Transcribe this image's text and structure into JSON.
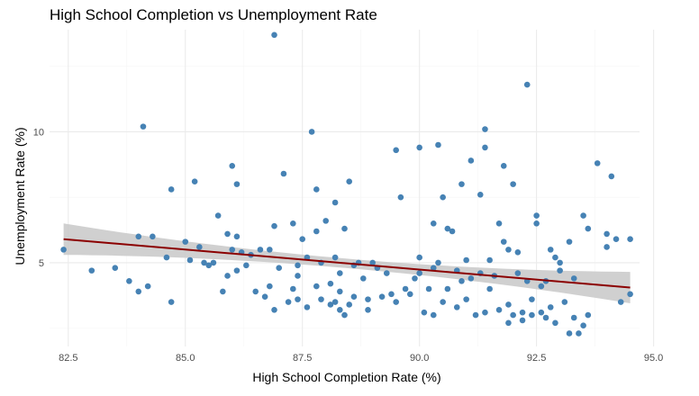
{
  "chart_data": {
    "type": "scatter",
    "title": "High School Completion vs Unemployment Rate",
    "xlabel": "High School Completion Rate (%)",
    "ylabel": "Unemployment Rate (%)",
    "xlim": [
      82.1,
      94.7
    ],
    "ylim": [
      1.8,
      13.9
    ],
    "x_ticks": [
      82.5,
      85.0,
      87.5,
      90.0,
      92.5,
      95.0
    ],
    "x_tick_labels": [
      "82.5",
      "85.0",
      "87.5",
      "90.0",
      "92.5",
      "95.0"
    ],
    "y_ticks": [
      5,
      10
    ],
    "y_tick_labels": [
      "5",
      "10"
    ],
    "grid": true,
    "legend": "none",
    "colors": {
      "points": "#4682b4",
      "trend_line": "#8b0000",
      "confidence_band": "#c8c8c8",
      "grid_major": "#ebebeb",
      "grid_minor": "#f5f5f5"
    },
    "trend": {
      "method": "linear",
      "start": [
        82.4,
        5.9
      ],
      "end": [
        94.5,
        4.05
      ],
      "band_halfwidth_start": 0.6,
      "band_halfwidth_mid": 0.18,
      "band_halfwidth_end": 0.6
    },
    "points": [
      [
        82.4,
        5.5
      ],
      [
        83.0,
        4.7
      ],
      [
        83.5,
        4.8
      ],
      [
        83.8,
        4.3
      ],
      [
        84.0,
        3.9
      ],
      [
        84.0,
        6.0
      ],
      [
        84.1,
        10.2
      ],
      [
        84.2,
        4.1
      ],
      [
        84.3,
        6.0
      ],
      [
        84.6,
        5.2
      ],
      [
        84.7,
        7.8
      ],
      [
        84.7,
        3.5
      ],
      [
        85.0,
        5.8
      ],
      [
        85.1,
        5.1
      ],
      [
        85.2,
        8.1
      ],
      [
        85.3,
        5.6
      ],
      [
        85.4,
        5.0
      ],
      [
        85.5,
        4.9
      ],
      [
        85.6,
        5.0
      ],
      [
        85.7,
        6.8
      ],
      [
        85.8,
        3.9
      ],
      [
        85.9,
        6.1
      ],
      [
        85.9,
        4.5
      ],
      [
        86.0,
        5.5
      ],
      [
        86.0,
        8.7
      ],
      [
        86.1,
        4.7
      ],
      [
        86.1,
        6.0
      ],
      [
        86.1,
        8.0
      ],
      [
        86.2,
        5.4
      ],
      [
        86.3,
        4.9
      ],
      [
        86.4,
        5.3
      ],
      [
        86.5,
        3.9
      ],
      [
        86.6,
        5.5
      ],
      [
        86.7,
        3.7
      ],
      [
        86.8,
        4.1
      ],
      [
        86.8,
        5.5
      ],
      [
        86.9,
        6.4
      ],
      [
        86.9,
        3.2
      ],
      [
        86.9,
        13.7
      ],
      [
        87.0,
        4.8
      ],
      [
        87.1,
        8.4
      ],
      [
        87.2,
        3.5
      ],
      [
        87.3,
        6.5
      ],
      [
        87.3,
        4.0
      ],
      [
        87.4,
        3.6
      ],
      [
        87.4,
        4.5
      ],
      [
        87.4,
        4.9
      ],
      [
        87.5,
        5.9
      ],
      [
        87.6,
        5.2
      ],
      [
        87.6,
        3.3
      ],
      [
        87.7,
        10.0
      ],
      [
        87.8,
        4.1
      ],
      [
        87.8,
        6.2
      ],
      [
        87.8,
        7.8
      ],
      [
        87.9,
        3.6
      ],
      [
        87.9,
        5.0
      ],
      [
        88.0,
        6.6
      ],
      [
        88.1,
        3.4
      ],
      [
        88.1,
        4.2
      ],
      [
        88.2,
        3.5
      ],
      [
        88.2,
        5.2
      ],
      [
        88.2,
        7.3
      ],
      [
        88.3,
        3.9
      ],
      [
        88.3,
        3.2
      ],
      [
        88.3,
        4.6
      ],
      [
        88.4,
        3.0
      ],
      [
        88.4,
        6.3
      ],
      [
        88.5,
        8.1
      ],
      [
        88.5,
        3.4
      ],
      [
        88.6,
        3.7
      ],
      [
        88.6,
        4.9
      ],
      [
        88.7,
        5.0
      ],
      [
        88.8,
        4.4
      ],
      [
        88.9,
        3.6
      ],
      [
        88.9,
        3.2
      ],
      [
        89.0,
        5.0
      ],
      [
        89.1,
        4.8
      ],
      [
        89.2,
        3.7
      ],
      [
        89.3,
        4.6
      ],
      [
        89.4,
        3.8
      ],
      [
        89.5,
        9.3
      ],
      [
        89.5,
        3.5
      ],
      [
        89.6,
        7.5
      ],
      [
        89.7,
        4.0
      ],
      [
        89.8,
        3.8
      ],
      [
        89.9,
        4.4
      ],
      [
        90.0,
        9.4
      ],
      [
        90.0,
        5.2
      ],
      [
        90.0,
        4.6
      ],
      [
        90.1,
        3.1
      ],
      [
        90.2,
        4.0
      ],
      [
        90.3,
        6.5
      ],
      [
        90.3,
        4.8
      ],
      [
        90.3,
        3.0
      ],
      [
        90.4,
        9.5
      ],
      [
        90.4,
        5.0
      ],
      [
        90.5,
        7.5
      ],
      [
        90.5,
        3.5
      ],
      [
        90.6,
        4.0
      ],
      [
        90.6,
        6.3
      ],
      [
        90.7,
        6.2
      ],
      [
        90.8,
        3.3
      ],
      [
        90.8,
        4.7
      ],
      [
        90.9,
        8.0
      ],
      [
        90.9,
        4.3
      ],
      [
        91.0,
        3.6
      ],
      [
        91.0,
        5.1
      ],
      [
        91.1,
        8.9
      ],
      [
        91.1,
        4.4
      ],
      [
        91.2,
        3.0
      ],
      [
        91.3,
        7.6
      ],
      [
        91.3,
        4.6
      ],
      [
        91.4,
        10.1
      ],
      [
        91.4,
        9.4
      ],
      [
        91.4,
        3.1
      ],
      [
        91.5,
        4.0
      ],
      [
        91.5,
        5.1
      ],
      [
        91.6,
        4.5
      ],
      [
        91.7,
        3.2
      ],
      [
        91.7,
        6.5
      ],
      [
        91.8,
        5.8
      ],
      [
        91.8,
        8.7
      ],
      [
        91.9,
        2.7
      ],
      [
        91.9,
        3.4
      ],
      [
        91.9,
        5.5
      ],
      [
        92.0,
        8.0
      ],
      [
        92.0,
        3.0
      ],
      [
        92.1,
        4.6
      ],
      [
        92.1,
        5.4
      ],
      [
        92.2,
        3.1
      ],
      [
        92.2,
        2.8
      ],
      [
        92.3,
        11.8
      ],
      [
        92.3,
        4.3
      ],
      [
        92.4,
        3.6
      ],
      [
        92.4,
        3.0
      ],
      [
        92.5,
        6.8
      ],
      [
        92.5,
        6.5
      ],
      [
        92.6,
        4.1
      ],
      [
        92.6,
        3.1
      ],
      [
        92.7,
        2.9
      ],
      [
        92.7,
        4.3
      ],
      [
        92.8,
        3.3
      ],
      [
        92.8,
        5.5
      ],
      [
        92.9,
        2.7
      ],
      [
        92.9,
        5.2
      ],
      [
        93.0,
        4.7
      ],
      [
        93.0,
        5.0
      ],
      [
        93.1,
        3.5
      ],
      [
        93.2,
        2.3
      ],
      [
        93.2,
        5.8
      ],
      [
        93.3,
        2.9
      ],
      [
        93.3,
        4.4
      ],
      [
        93.4,
        2.3
      ],
      [
        93.5,
        2.6
      ],
      [
        93.5,
        6.8
      ],
      [
        93.6,
        3.0
      ],
      [
        93.6,
        6.3
      ],
      [
        93.8,
        8.8
      ],
      [
        94.0,
        6.1
      ],
      [
        94.0,
        5.6
      ],
      [
        94.1,
        8.3
      ],
      [
        94.2,
        5.9
      ],
      [
        94.3,
        3.5
      ],
      [
        94.5,
        5.9
      ],
      [
        94.5,
        3.8
      ]
    ]
  }
}
